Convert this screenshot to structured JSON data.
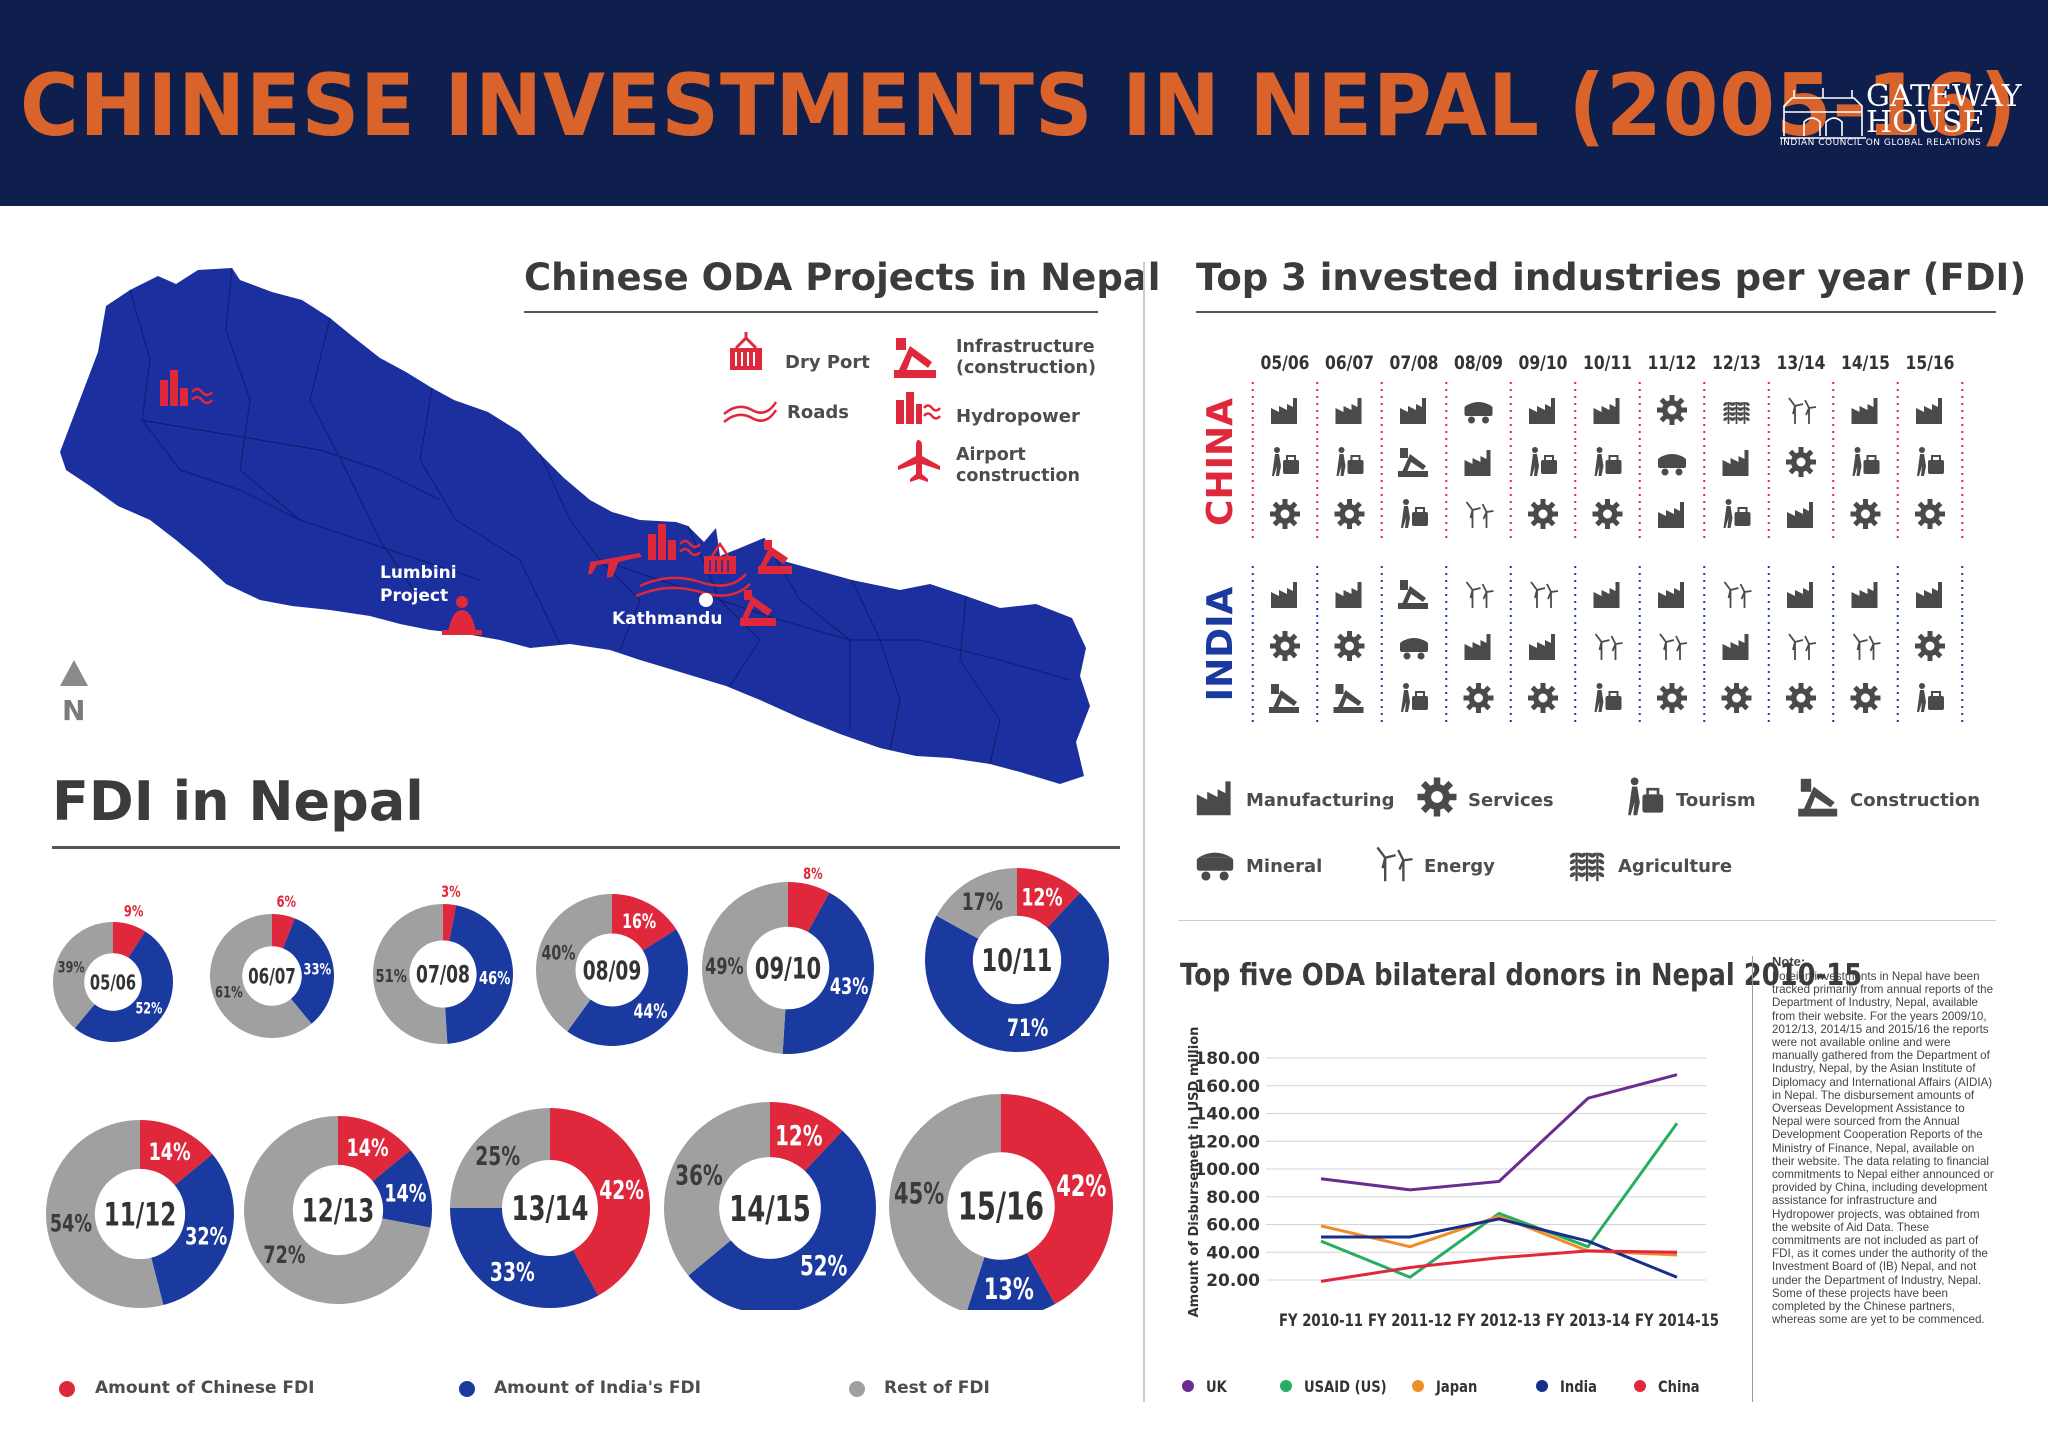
{
  "header": {
    "title": "CHINESE INVESTMENTS IN NEPAL (2005-16)",
    "logo_name": "GATEWAY HOUSE",
    "logo_subtitle": "INDIAN COUNCIL ON GLOBAL RELATIONS"
  },
  "oda_map": {
    "title": "Chinese ODA Projects in Nepal",
    "legend": [
      {
        "icon": "dry-port-icon",
        "label": "Dry Port"
      },
      {
        "icon": "roads-icon",
        "label": "Roads"
      },
      {
        "icon": "infrastructure-icon",
        "label": "Infrastructure (construction)"
      },
      {
        "icon": "hydropower-icon",
        "label": "Hydropower"
      },
      {
        "icon": "airport-icon",
        "label": "Airport construction"
      }
    ],
    "labels": {
      "lumbini": "Lumbini Project",
      "kathmandu": "Kathmandu",
      "north": "N"
    },
    "colors": {
      "map": "#1b2f9f",
      "marker": "#e0283c"
    }
  },
  "industries": {
    "title": "Top 3 invested industries per year (FDI)",
    "years": [
      "05/06",
      "06/07",
      "07/08",
      "08/09",
      "09/10",
      "10/11",
      "11/12",
      "12/13",
      "13/14",
      "14/15",
      "15/16"
    ],
    "china_label": "CHINA",
    "india_label": "INDIA",
    "china": [
      [
        "manufacturing",
        "tourism",
        "services"
      ],
      [
        "manufacturing",
        "tourism",
        "services"
      ],
      [
        "manufacturing",
        "construction",
        "tourism"
      ],
      [
        "mineral",
        "manufacturing",
        "energy"
      ],
      [
        "manufacturing",
        "tourism",
        "services"
      ],
      [
        "manufacturing",
        "tourism",
        "services"
      ],
      [
        "services",
        "mineral",
        "manufacturing"
      ],
      [
        "agriculture",
        "manufacturing",
        "tourism"
      ],
      [
        "energy",
        "services",
        "manufacturing"
      ],
      [
        "manufacturing",
        "tourism",
        "services"
      ],
      [
        "manufacturing",
        "tourism",
        "services"
      ]
    ],
    "india": [
      [
        "manufacturing",
        "services",
        "construction"
      ],
      [
        "manufacturing",
        "services",
        "construction"
      ],
      [
        "construction",
        "mineral",
        "tourism"
      ],
      [
        "energy",
        "manufacturing",
        "services"
      ],
      [
        "energy",
        "manufacturing",
        "services"
      ],
      [
        "manufacturing",
        "energy",
        "tourism"
      ],
      [
        "manufacturing",
        "energy",
        "services"
      ],
      [
        "energy",
        "manufacturing",
        "services"
      ],
      [
        "manufacturing",
        "energy",
        "services"
      ],
      [
        "manufacturing",
        "energy",
        "services"
      ],
      [
        "manufacturing",
        "services",
        "tourism"
      ]
    ],
    "legend": [
      {
        "key": "manufacturing",
        "label": "Manufacturing"
      },
      {
        "key": "services",
        "label": "Services"
      },
      {
        "key": "tourism",
        "label": "Tourism"
      },
      {
        "key": "construction",
        "label": "Construction"
      },
      {
        "key": "mineral",
        "label": "Mineral"
      },
      {
        "key": "energy",
        "label": "Energy"
      },
      {
        "key": "agriculture",
        "label": "Agriculture"
      }
    ],
    "colors": {
      "china": "#e0283c",
      "india": "#1b3aa0",
      "icon": "#4a4a4a"
    }
  },
  "fdi": {
    "title": "FDI in Nepal",
    "legend": [
      "Amount of Chinese FDI",
      "Amount of India's FDI",
      "Rest of FDI"
    ],
    "colors": {
      "china": "#e0283c",
      "india": "#1b3aa0",
      "rest": "#a0a0a0"
    }
  },
  "notes": {
    "heading": "Note:",
    "body": "Foreign investments in Nepal have been tracked primarily from annual reports of the Department of Industry, Nepal, available from their website. For the years 2009/10, 2012/13, 2014/15 and 2015/16 the reports were not available online and were manually gathered from the Department of Industry, Nepal, by the Asian Institute of Diplomacy and International Affairs (AIDIA) in Nepal. The disbursement amounts of Overseas Development Assistance to Nepal were sourced from the Annual Development Cooperation Reports of the Ministry of Finance, Nepal, available on their website. The data relating to financial commitments to Nepal either announced or provided by China, including development assistance for infrastructure and Hydropower projects, was obtained from the website of Aid Data. These commitments are not included as part of FDI, as it comes under the authority of the Investment Board of (IB) Nepal, and not under the Department of Industry, Nepal. Some of these projects have been completed by the Chinese partners, whereas some are yet to be commenced."
  },
  "chart_data": [
    {
      "type": "pie",
      "title": "FDI in Nepal",
      "legend": [
        "Amount of Chinese FDI",
        "Amount of India's FDI",
        "Rest of FDI"
      ],
      "legend_position": "bottom",
      "donuts": [
        {
          "label": "05/06",
          "china": 9,
          "india": 52,
          "rest": 39
        },
        {
          "label": "06/07",
          "china": 6,
          "india": 33,
          "rest": 61
        },
        {
          "label": "07/08",
          "china": 3,
          "india": 46,
          "rest": 51
        },
        {
          "label": "08/09",
          "china": 16,
          "india": 44,
          "rest": 40
        },
        {
          "label": "09/10",
          "china": 8,
          "india": 43,
          "rest": 49
        },
        {
          "label": "10/11",
          "china": 12,
          "india": 71,
          "rest": 17
        },
        {
          "label": "11/12",
          "china": 14,
          "india": 32,
          "rest": 54
        },
        {
          "label": "12/13",
          "china": 14,
          "india": 14,
          "rest": 72
        },
        {
          "label": "13/14",
          "china": 42,
          "india": 33,
          "rest": 25
        },
        {
          "label": "14/15",
          "china": 12,
          "india": 52,
          "rest": 36
        },
        {
          "label": "15/16",
          "china": 42,
          "india": 13,
          "rest": 45
        }
      ]
    },
    {
      "type": "line",
      "title": "Top five ODA bilateral donors in Nepal 2010-15",
      "ylabel": "Amount of Disbursement in USD million",
      "xlabel": "",
      "categories": [
        "FY 2010-11",
        "FY 2011-12",
        "FY 2012-13",
        "FY 2013-14",
        "FY 2014-15"
      ],
      "ylim": [
        20,
        180
      ],
      "yticks": [
        "180.00",
        "160.00",
        "140.00",
        "120.00",
        "100.00",
        "80.00",
        "60.00",
        "40.00",
        "20.00"
      ],
      "grid": true,
      "legend_position": "bottom",
      "series": [
        {
          "name": "UK",
          "color": "#6a2c91",
          "values": [
            93,
            85,
            91,
            151,
            168
          ]
        },
        {
          "name": "USAID (US)",
          "color": "#27ae60",
          "values": [
            48,
            22,
            68,
            44,
            133
          ]
        },
        {
          "name": "Japan",
          "color": "#f08c2a",
          "values": [
            59,
            44,
            66,
            41,
            38
          ]
        },
        {
          "name": "India",
          "color": "#152f8a",
          "values": [
            51,
            51,
            64,
            48,
            22
          ]
        },
        {
          "name": "China",
          "color": "#e0283c",
          "values": [
            19,
            29,
            36,
            41,
            40
          ]
        }
      ]
    }
  ]
}
